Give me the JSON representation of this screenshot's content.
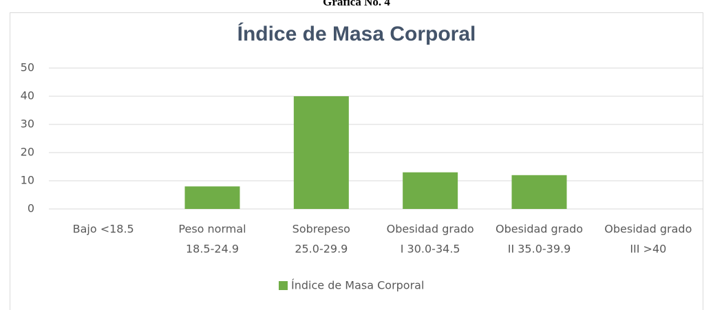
{
  "page_header": "Gráfica No. 4",
  "chart_data": {
    "type": "bar",
    "title": "Índice de Masa Corporal",
    "categories": [
      [
        "Bajo  <18.5"
      ],
      [
        "Peso normal",
        "18.5-24.9"
      ],
      [
        "Sobrepeso",
        "25.0-29.9"
      ],
      [
        "Obesidad grado",
        "I 30.0-34.5"
      ],
      [
        "Obesidad grado",
        "II 35.0-39.9"
      ],
      [
        "Obesidad grado",
        "III >40"
      ]
    ],
    "series": [
      {
        "name": "Índice de Masa Corporal",
        "color": "#70ad47",
        "values": [
          0,
          8,
          40,
          13,
          12,
          0
        ]
      }
    ],
    "ylim": [
      0,
      50
    ],
    "yticks": [
      0,
      10,
      20,
      30,
      40,
      50
    ],
    "grid": true,
    "legend": "bottom"
  }
}
